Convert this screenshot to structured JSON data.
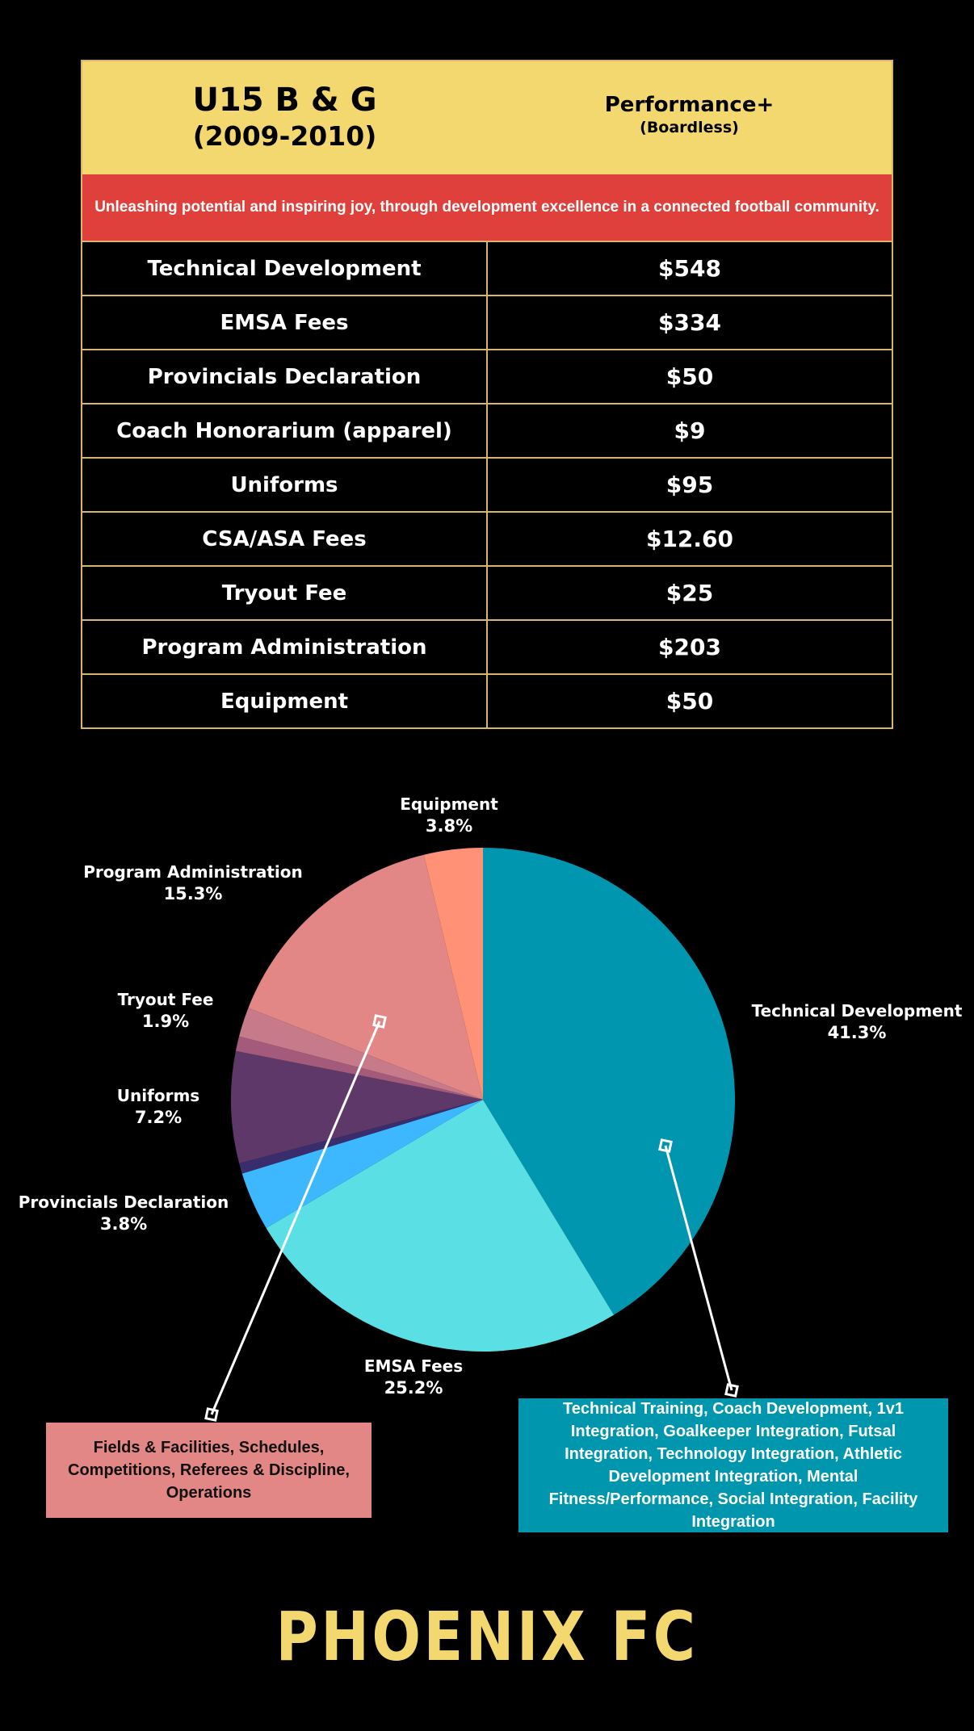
{
  "header": {
    "title_line1": "U15 B & G",
    "title_line2": "(2009-2010)",
    "program_name": "Performance+",
    "program_sub": "(Boardless)"
  },
  "mission": "Unleashing potential and inspiring joy, through development excellence in a connected football community.",
  "fees": [
    {
      "item": "Technical Development",
      "amount": "$548"
    },
    {
      "item": "EMSA Fees",
      "amount": "$334"
    },
    {
      "item": "Provincials Declaration",
      "amount": "$50"
    },
    {
      "item": "Coach Honorarium (apparel)",
      "amount": "$9"
    },
    {
      "item": "Uniforms",
      "amount": "$95"
    },
    {
      "item": "CSA/ASA Fees",
      "amount": "$12.60"
    },
    {
      "item": "Tryout Fee",
      "amount": "$25"
    },
    {
      "item": "Program Administration",
      "amount": "$203"
    },
    {
      "item": "Equipment",
      "amount": "$50"
    }
  ],
  "chart_data": {
    "type": "pie",
    "slices": [
      {
        "name": "Technical Development",
        "value": 548,
        "pct_label": "41.3%",
        "color": "#0096b0"
      },
      {
        "name": "EMSA Fees",
        "value": 334,
        "pct_label": "25.2%",
        "color": "#5ae0e4"
      },
      {
        "name": "Provincials Declaration",
        "value": 50,
        "pct_label": "3.8%",
        "color": "#3db8ff"
      },
      {
        "name": "Coach Honorarium (apparel)",
        "value": 9,
        "pct_label": "",
        "color": "#3a2d6e"
      },
      {
        "name": "Uniforms",
        "value": 95,
        "pct_label": "7.2%",
        "color": "#5e3868"
      },
      {
        "name": "CSA/ASA Fees",
        "value": 12.6,
        "pct_label": "",
        "color": "#a45a7a"
      },
      {
        "name": "Tryout Fee",
        "value": 25,
        "pct_label": "1.9%",
        "color": "#c67a8a"
      },
      {
        "name": "Program Administration",
        "value": 203,
        "pct_label": "15.3%",
        "color": "#e28686"
      },
      {
        "name": "Equipment",
        "value": 50,
        "pct_label": "3.8%",
        "color": "#ff9276"
      }
    ]
  },
  "callouts": {
    "admin": "Fields & Facilities, Schedules, Competitions, Referees & Discipline, Operations",
    "tech": "Technical Training, Coach Development, 1v1 Integration, Goalkeeper Integration, Futsal Integration, Technology Integration, Athletic Development Integration, Mental Fitness/Performance, Social Integration, Facility Integration"
  },
  "logo_text": "PHOENIX FC",
  "colors": {
    "header_bg": "#f3d86f",
    "mission_bg": "#e0403b",
    "table_border": "#d9b56b",
    "logo": "#f3d86f"
  }
}
